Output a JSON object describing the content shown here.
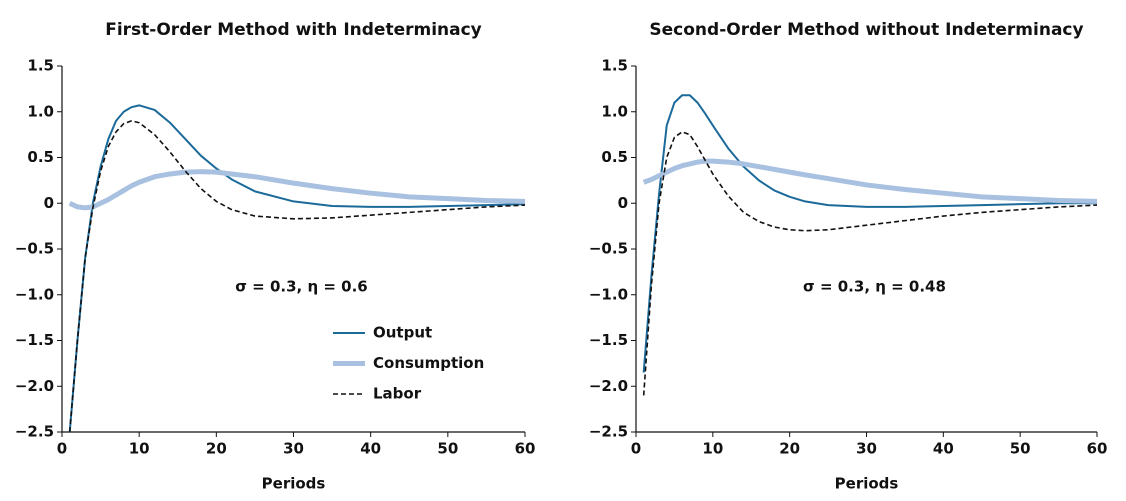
{
  "chart_data": [
    {
      "type": "line",
      "title": "First-Order Method with Indeterminacy",
      "x_label": "Periods",
      "annotation": "σ = 0.3, η = 0.6",
      "x": [
        1,
        2,
        3,
        4,
        5,
        6,
        7,
        8,
        9,
        10,
        12,
        14,
        16,
        18,
        20,
        22,
        25,
        30,
        35,
        40,
        45,
        50,
        55,
        60
      ],
      "xlim": [
        0,
        60
      ],
      "xticks": [
        0,
        10,
        20,
        30,
        40,
        50,
        60
      ],
      "ylim": [
        -2.5,
        1.5
      ],
      "yticks": [
        1.5,
        {
          "value": 1.0,
          "label": "1.0"
        },
        0.5,
        0,
        {
          "value": -0.5,
          "label": "−0.5"
        },
        {
          "value": -1.0,
          "label": "−1.0"
        },
        {
          "value": -1.5,
          "label": "−1.5"
        },
        {
          "value": -2.0,
          "label": "−2.0"
        },
        {
          "value": -2.5,
          "label": "−2.5"
        }
      ],
      "legend": "lower right",
      "series": [
        {
          "name": "Output",
          "color": "#1b6a9a",
          "linewidth": 2,
          "dashed": false,
          "values": [
            -2.5,
            -1.5,
            -0.6,
            0,
            0.4,
            0.7,
            0.9,
            1.0,
            1.05,
            1.07,
            1.02,
            0.88,
            0.7,
            0.52,
            0.38,
            0.26,
            0.13,
            0.02,
            -0.03,
            -0.04,
            -0.04,
            -0.03,
            -0.02,
            -0.01
          ]
        },
        {
          "name": "Consumption",
          "color": "#a9c1e0",
          "linewidth": 5,
          "dashed": false,
          "values": [
            0,
            -0.04,
            -0.05,
            -0.04,
            0,
            0.04,
            0.09,
            0.14,
            0.19,
            0.23,
            0.29,
            0.32,
            0.34,
            0.345,
            0.34,
            0.32,
            0.29,
            0.22,
            0.16,
            0.11,
            0.07,
            0.05,
            0.03,
            0.02
          ]
        },
        {
          "name": "Labor",
          "color": "#111111",
          "linewidth": 1.6,
          "dashed": true,
          "values": [
            -2.5,
            -1.5,
            -0.6,
            -0.05,
            0.35,
            0.62,
            0.78,
            0.87,
            0.9,
            0.88,
            0.75,
            0.56,
            0.35,
            0.16,
            0.02,
            -0.07,
            -0.14,
            -0.17,
            -0.16,
            -0.13,
            -0.1,
            -0.07,
            -0.04,
            -0.02
          ]
        }
      ]
    },
    {
      "type": "line",
      "title": "Second-Order Method without Indeterminacy",
      "x_label": "Periods",
      "annotation": "σ = 0.3, η = 0.48",
      "x": [
        1,
        2,
        3,
        4,
        5,
        6,
        7,
        8,
        9,
        10,
        12,
        14,
        16,
        18,
        20,
        22,
        25,
        30,
        35,
        40,
        45,
        50,
        55,
        60
      ],
      "xlim": [
        0,
        60
      ],
      "xticks": [
        0,
        10,
        20,
        30,
        40,
        50,
        60
      ],
      "ylim": [
        -2.5,
        1.5
      ],
      "yticks": [
        1.5,
        {
          "value": 1.0,
          "label": "1.0"
        },
        0.5,
        0,
        {
          "value": -0.5,
          "label": "−0.5"
        },
        {
          "value": -1.0,
          "label": "−1.0"
        },
        {
          "value": -1.5,
          "label": "−1.5"
        },
        {
          "value": -2.0,
          "label": "−2.0"
        },
        {
          "value": -2.5,
          "label": "−2.5"
        }
      ],
      "series": [
        {
          "color": "#1b6a9a",
          "linewidth": 2,
          "dashed": false,
          "values": [
            -1.85,
            -0.8,
            0.1,
            0.85,
            1.1,
            1.18,
            1.18,
            1.1,
            0.98,
            0.85,
            0.6,
            0.4,
            0.25,
            0.14,
            0.07,
            0.02,
            -0.02,
            -0.04,
            -0.04,
            -0.03,
            -0.02,
            -0.01,
            0,
            0
          ]
        },
        {
          "color": "#a9c1e0",
          "linewidth": 5,
          "dashed": false,
          "values": [
            0.23,
            0.26,
            0.3,
            0.34,
            0.38,
            0.41,
            0.43,
            0.45,
            0.46,
            0.46,
            0.45,
            0.43,
            0.4,
            0.37,
            0.34,
            0.31,
            0.27,
            0.2,
            0.15,
            0.11,
            0.07,
            0.05,
            0.03,
            0.02
          ]
        },
        {
          "color": "#111111",
          "linewidth": 1.6,
          "dashed": true,
          "values": [
            -2.1,
            -0.9,
            0,
            0.5,
            0.72,
            0.78,
            0.75,
            0.62,
            0.47,
            0.32,
            0.08,
            -0.1,
            -0.2,
            -0.26,
            -0.29,
            -0.3,
            -0.29,
            -0.24,
            -0.19,
            -0.14,
            -0.1,
            -0.07,
            -0.04,
            -0.02
          ]
        }
      ]
    }
  ]
}
